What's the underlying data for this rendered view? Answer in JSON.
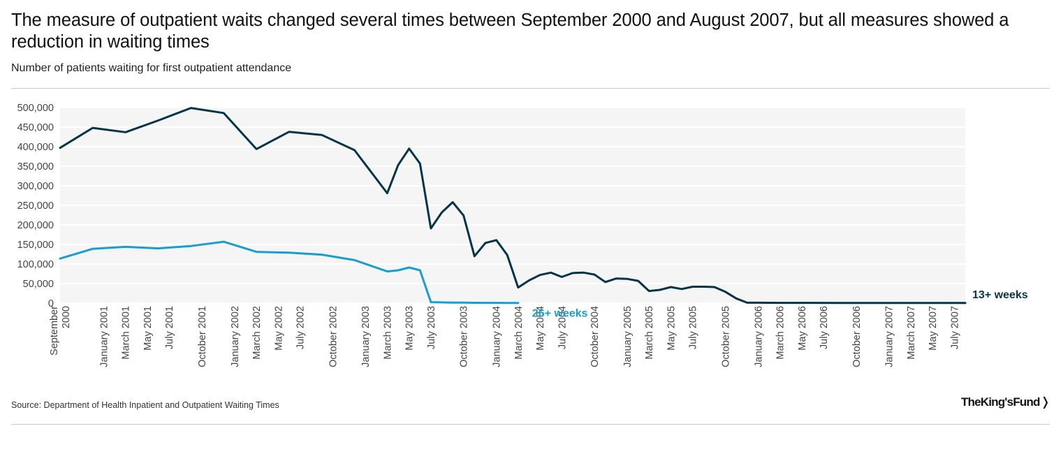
{
  "header": {
    "title": "The measure of outpatient waits changed several times between September 2000 and August 2007, but all measures showed a reduction in waiting times",
    "subtitle": "Number of patients waiting for first outpatient attendance"
  },
  "footer": {
    "source": "Source: Department of Health Inpatient and Outpatient Waiting Times",
    "logo": "The King's Fund"
  },
  "colors": {
    "series_13": "#063548",
    "series_26": "#1a9dd0",
    "plot_bg": "#f5f5f5",
    "grid": "#ffffff"
  },
  "chart_data": {
    "type": "line",
    "ylim": [
      0,
      500000
    ],
    "yticks": [
      0,
      50000,
      100000,
      150000,
      200000,
      250000,
      300000,
      350000,
      400000,
      450000,
      500000
    ],
    "ytick_labels": [
      "0",
      "50,000",
      "100,000",
      "150,000",
      "200,000",
      "250,000",
      "300,000",
      "350,000",
      "400,000",
      "450,000",
      "500,000"
    ],
    "grid": true,
    "x_start": "2000-09",
    "x_end": "2007-08",
    "xtick_labels": [
      {
        "x": "2000-09",
        "label": "September 2000"
      },
      {
        "x": "2001-01",
        "label": "January 2001"
      },
      {
        "x": "2001-03",
        "label": "March 2001"
      },
      {
        "x": "2001-05",
        "label": "May 2001"
      },
      {
        "x": "2001-07",
        "label": "July 2001"
      },
      {
        "x": "2001-10",
        "label": "October 2001"
      },
      {
        "x": "2002-01",
        "label": "January 2002"
      },
      {
        "x": "2002-03",
        "label": "March 2002"
      },
      {
        "x": "2002-05",
        "label": "May 2002"
      },
      {
        "x": "2002-07",
        "label": "July 2002"
      },
      {
        "x": "2002-10",
        "label": "October 2002"
      },
      {
        "x": "2003-01",
        "label": "January 2003"
      },
      {
        "x": "2003-03",
        "label": "March 2003"
      },
      {
        "x": "2003-05",
        "label": "May 2003"
      },
      {
        "x": "2003-07",
        "label": "July 2003"
      },
      {
        "x": "2003-10",
        "label": "October 2003"
      },
      {
        "x": "2004-01",
        "label": "January 2004"
      },
      {
        "x": "2004-03",
        "label": "March 2004"
      },
      {
        "x": "2004-05",
        "label": "May 2004"
      },
      {
        "x": "2004-07",
        "label": "July 2004"
      },
      {
        "x": "2004-10",
        "label": "October 2004"
      },
      {
        "x": "2005-01",
        "label": "January 2005"
      },
      {
        "x": "2005-03",
        "label": "March 2005"
      },
      {
        "x": "2005-05",
        "label": "May 2005"
      },
      {
        "x": "2005-07",
        "label": "July 2005"
      },
      {
        "x": "2005-10",
        "label": "October 2005"
      },
      {
        "x": "2006-01",
        "label": "January 2006"
      },
      {
        "x": "2006-03",
        "label": "March 2006"
      },
      {
        "x": "2006-05",
        "label": "May 2006"
      },
      {
        "x": "2006-07",
        "label": "July 2006"
      },
      {
        "x": "2006-10",
        "label": "October 2006"
      },
      {
        "x": "2007-01",
        "label": "January 2007"
      },
      {
        "x": "2007-03",
        "label": "March 2007"
      },
      {
        "x": "2007-05",
        "label": "May 2007"
      },
      {
        "x": "2007-07",
        "label": "July 2007"
      }
    ],
    "series": [
      {
        "name": "13+ weeks",
        "color": "#063548",
        "points": [
          [
            "2000-09",
            397000
          ],
          [
            "2000-12",
            448000
          ],
          [
            "2001-03",
            437000
          ],
          [
            "2001-06",
            467000
          ],
          [
            "2001-09",
            499000
          ],
          [
            "2001-12",
            486000
          ],
          [
            "2002-03",
            394000
          ],
          [
            "2002-06",
            438000
          ],
          [
            "2002-09",
            430000
          ],
          [
            "2002-12",
            391000
          ],
          [
            "2003-03",
            281000
          ],
          [
            "2003-04",
            353000
          ],
          [
            "2003-05",
            395000
          ],
          [
            "2003-06",
            357000
          ],
          [
            "2003-07",
            191000
          ],
          [
            "2003-08",
            232000
          ],
          [
            "2003-09",
            258000
          ],
          [
            "2003-10",
            224000
          ],
          [
            "2003-11",
            120000
          ],
          [
            "2003-12",
            154000
          ],
          [
            "2004-01",
            161000
          ],
          [
            "2004-02",
            123000
          ],
          [
            "2004-03",
            40000
          ],
          [
            "2004-04",
            58000
          ],
          [
            "2004-05",
            72000
          ],
          [
            "2004-06",
            78000
          ],
          [
            "2004-07",
            67000
          ],
          [
            "2004-08",
            77000
          ],
          [
            "2004-09",
            78000
          ],
          [
            "2004-10",
            73000
          ],
          [
            "2004-11",
            54000
          ],
          [
            "2004-12",
            63000
          ],
          [
            "2005-01",
            62000
          ],
          [
            "2005-02",
            57000
          ],
          [
            "2005-03",
            31000
          ],
          [
            "2005-04",
            34000
          ],
          [
            "2005-05",
            41000
          ],
          [
            "2005-06",
            36000
          ],
          [
            "2005-07",
            42000
          ],
          [
            "2005-08",
            42000
          ],
          [
            "2005-09",
            41000
          ],
          [
            "2005-10",
            29000
          ],
          [
            "2005-11",
            12000
          ],
          [
            "2005-12",
            1000
          ],
          [
            "2006-01",
            1000
          ],
          [
            "2006-03",
            800
          ],
          [
            "2006-06",
            700
          ],
          [
            "2006-09",
            600
          ],
          [
            "2006-12",
            500
          ],
          [
            "2007-03",
            500
          ],
          [
            "2007-06",
            400
          ],
          [
            "2007-08",
            400
          ]
        ]
      },
      {
        "name": "26+ weeks",
        "color": "#1a9dd0",
        "points": [
          [
            "2000-09",
            114000
          ],
          [
            "2000-12",
            139000
          ],
          [
            "2001-03",
            144000
          ],
          [
            "2001-06",
            140000
          ],
          [
            "2001-09",
            146000
          ],
          [
            "2001-12",
            157000
          ],
          [
            "2002-03",
            131000
          ],
          [
            "2002-06",
            129000
          ],
          [
            "2002-09",
            124000
          ],
          [
            "2002-12",
            110000
          ],
          [
            "2003-03",
            81000
          ],
          [
            "2003-04",
            84000
          ],
          [
            "2003-05",
            91000
          ],
          [
            "2003-06",
            84000
          ],
          [
            "2003-07",
            2500
          ],
          [
            "2003-08",
            2000
          ],
          [
            "2003-09",
            1500
          ],
          [
            "2003-10",
            1200
          ],
          [
            "2003-11",
            900
          ],
          [
            "2003-12",
            800
          ],
          [
            "2004-01",
            700
          ],
          [
            "2004-02",
            600
          ],
          [
            "2004-03",
            500
          ]
        ]
      }
    ]
  }
}
